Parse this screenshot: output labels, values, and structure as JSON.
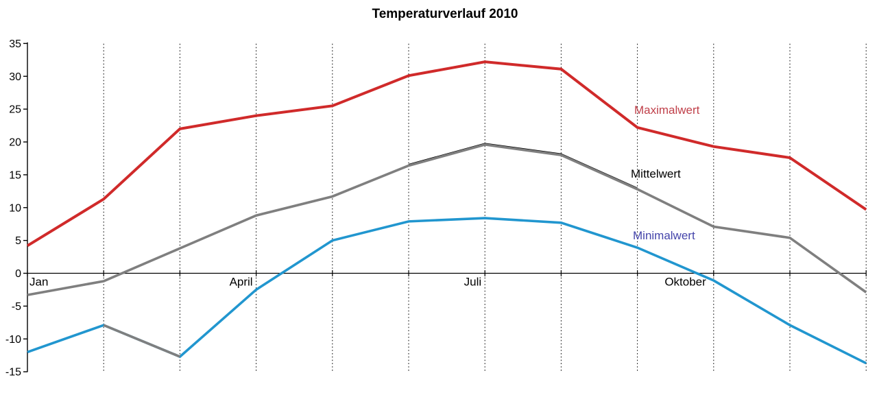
{
  "title": "Temperaturverlauf 2010",
  "chart_data": {
    "type": "line",
    "title": "Temperaturverlauf 2010",
    "x": [
      1,
      2,
      3,
      4,
      5,
      6,
      7,
      8,
      9,
      10,
      11,
      12
    ],
    "x_axis_labels": [
      {
        "text": "Jan",
        "month": 0,
        "align": "start",
        "dx": 3
      },
      {
        "text": "April",
        "month": 3,
        "align": "end",
        "dx": -5
      },
      {
        "text": "Juli",
        "month": 6,
        "align": "end",
        "dx": -5
      },
      {
        "text": "Oktober",
        "month": 9,
        "align": "end",
        "dx": -11
      }
    ],
    "yticks": [
      35,
      30,
      25,
      20,
      15,
      10,
      5,
      0,
      -5,
      -10,
      -15
    ],
    "ylim": [
      -15,
      35
    ],
    "grid": "vertical-dotted",
    "legend_position": "inline-labels-right",
    "series": [
      {
        "name": "Maximalwert",
        "color": "#d02a2a",
        "label_color": "#c0404a",
        "label_x": 925,
        "label_y": 166,
        "values": [
          4.2,
          11.3,
          22.0,
          24.0,
          25.5,
          30.1,
          32.2,
          31.1,
          22.2,
          19.3,
          17.6,
          9.7
        ]
      },
      {
        "name": "Mittelwert",
        "color": "#7f7f7f",
        "label_color": "#000000",
        "label_x": 920,
        "label_y": 259,
        "values": [
          -3.3,
          -1.2,
          3.8,
          8.8,
          11.7,
          16.4,
          19.6,
          18.0,
          12.8,
          7.1,
          5.4,
          -2.9
        ]
      },
      {
        "name": "Minimalwert",
        "color": "#2196cf",
        "label_color": "#4444aa",
        "label_x": 923,
        "label_y": 349,
        "values": [
          -12.0,
          -7.9,
          -12.7,
          -2.5,
          5.0,
          7.9,
          8.4,
          7.7,
          3.9,
          -1.1,
          -7.9,
          -13.7
        ]
      }
    ],
    "render_quirks": {
      "min_series_gray_segment_months": [
        1,
        2
      ],
      "mittel_series_black_edge_months": [
        5,
        8
      ]
    }
  },
  "colors": {
    "axis": "#000000",
    "gridline": "#000000",
    "background": "#ffffff"
  }
}
